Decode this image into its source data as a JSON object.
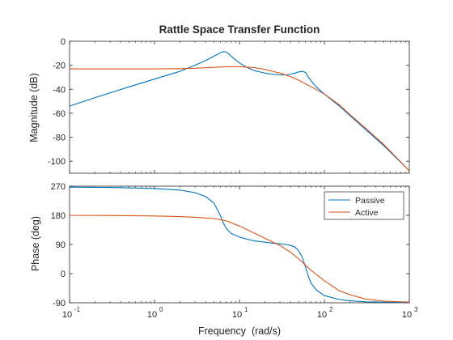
{
  "chart_data": [
    {
      "type": "line",
      "title": "Rattle Space Transfer Function",
      "xlabel": "",
      "ylabel": "Magnitude (dB)",
      "xscale": "log",
      "xlim": [
        0.1,
        1000
      ],
      "ylim": [
        -110,
        0
      ],
      "yticks": [
        0,
        -20,
        -40,
        -60,
        -80,
        -100
      ],
      "grid": false,
      "series": [
        {
          "name": "Passive",
          "color": "#0072BD",
          "x": [
            0.1,
            0.2,
            0.5,
            1,
            2,
            3,
            4,
            5,
            6,
            6.5,
            7,
            7.5,
            8,
            9,
            10,
            12,
            15,
            20,
            25,
            30,
            35,
            40,
            45,
            50,
            55,
            60,
            65,
            70,
            80,
            100,
            150,
            200,
            300,
            500,
            1000
          ],
          "y": [
            -54,
            -47,
            -38,
            -31.5,
            -25,
            -20,
            -16,
            -12.5,
            -9.5,
            -8.5,
            -9,
            -10.5,
            -12.5,
            -15.5,
            -18,
            -21.5,
            -24.5,
            -26.5,
            -27.5,
            -28,
            -28,
            -27.5,
            -26.5,
            -25.5,
            -25,
            -26,
            -30,
            -33,
            -38,
            -44,
            -54,
            -62,
            -73,
            -87,
            -108
          ]
        },
        {
          "name": "Active",
          "color": "#D95319",
          "x": [
            0.1,
            0.5,
            1,
            2,
            3,
            5,
            7,
            10,
            15,
            20,
            30,
            40,
            50,
            70,
            100,
            150,
            200,
            300,
            500,
            1000
          ],
          "y": [
            -23,
            -23,
            -23,
            -22.8,
            -22.5,
            -21.7,
            -21.2,
            -21.2,
            -22,
            -23.5,
            -26.5,
            -29.5,
            -32.5,
            -38,
            -44,
            -53,
            -61,
            -72,
            -86,
            -108
          ]
        }
      ]
    },
    {
      "type": "line",
      "title": "",
      "xlabel": "Frequency  (rad/s)",
      "ylabel": "Phase (deg)",
      "xscale": "log",
      "xlim": [
        0.1,
        1000
      ],
      "ylim": [
        -90,
        270
      ],
      "xticks": [
        "10",
        "10",
        "10",
        "10",
        "10"
      ],
      "xtick_exponents": [
        "-1",
        "0",
        "1",
        "2",
        "3"
      ],
      "yticks": [
        270,
        180,
        90,
        0,
        -90
      ],
      "grid": false,
      "legend": {
        "position": "top-right",
        "entries": [
          "Passive",
          "Active"
        ]
      },
      "series": [
        {
          "name": "Passive",
          "color": "#0072BD",
          "x": [
            0.1,
            0.3,
            1,
            2,
            3,
            4,
            5,
            6,
            6.5,
            7,
            7.5,
            8,
            9,
            10,
            12,
            15,
            20,
            25,
            30,
            35,
            40,
            45,
            50,
            55,
            60,
            65,
            70,
            80,
            100,
            150,
            200,
            300,
            500,
            1000
          ],
          "y": [
            267,
            266,
            263,
            258,
            250,
            238,
            218,
            178,
            155,
            140,
            131,
            124,
            118,
            113,
            107,
            101,
            97,
            94,
            92,
            90,
            87,
            82,
            70,
            50,
            20,
            -10,
            -30,
            -50,
            -68,
            -80,
            -84,
            -87,
            -88,
            -89
          ]
        },
        {
          "name": "Active",
          "color": "#D95319",
          "x": [
            0.1,
            0.5,
            1,
            2,
            3,
            5,
            7,
            10,
            15,
            20,
            30,
            40,
            50,
            70,
            100,
            150,
            200,
            300,
            500,
            1000
          ],
          "y": [
            180,
            179,
            178,
            176,
            174,
            170,
            163,
            147,
            125,
            109,
            87,
            66,
            45,
            10,
            -22,
            -53,
            -65,
            -78,
            -85,
            -88
          ]
        }
      ]
    }
  ]
}
